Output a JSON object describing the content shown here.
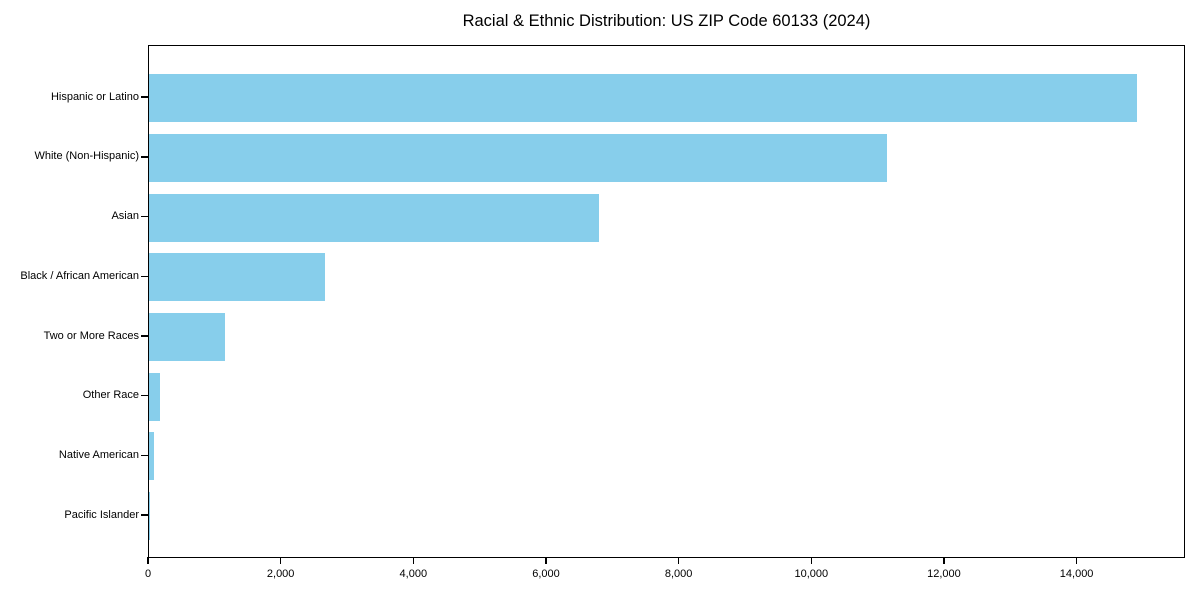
{
  "title": "Racial & Ethnic Distribution: US ZIP Code 60133 (2024)",
  "colors": {
    "bar": "#87CEEB",
    "axis": "#000000",
    "background": "#FFFFFF",
    "text": "#000000"
  },
  "chart_data": {
    "type": "bar",
    "orientation": "horizontal",
    "title": "Racial & Ethnic Distribution: US ZIP Code 60133 (2024)",
    "categories": [
      "Hispanic or Latino",
      "White (Non-Hispanic)",
      "Asian",
      "Black / African American",
      "Two or More Races",
      "Other Race",
      "Native American",
      "Pacific Islander"
    ],
    "values": [
      14890,
      11120,
      6790,
      2650,
      1140,
      165,
      75,
      10
    ],
    "xlabel": "",
    "ylabel": "",
    "xlim": [
      0,
      15634
    ],
    "x_ticks": [
      0,
      2000,
      4000,
      6000,
      8000,
      10000,
      12000,
      14000
    ],
    "x_tick_labels": [
      "0",
      "2,000",
      "4,000",
      "6,000",
      "8,000",
      "10,000",
      "12,000",
      "14,000"
    ],
    "grid": false,
    "legend": false,
    "bar_color": "#87CEEB"
  }
}
